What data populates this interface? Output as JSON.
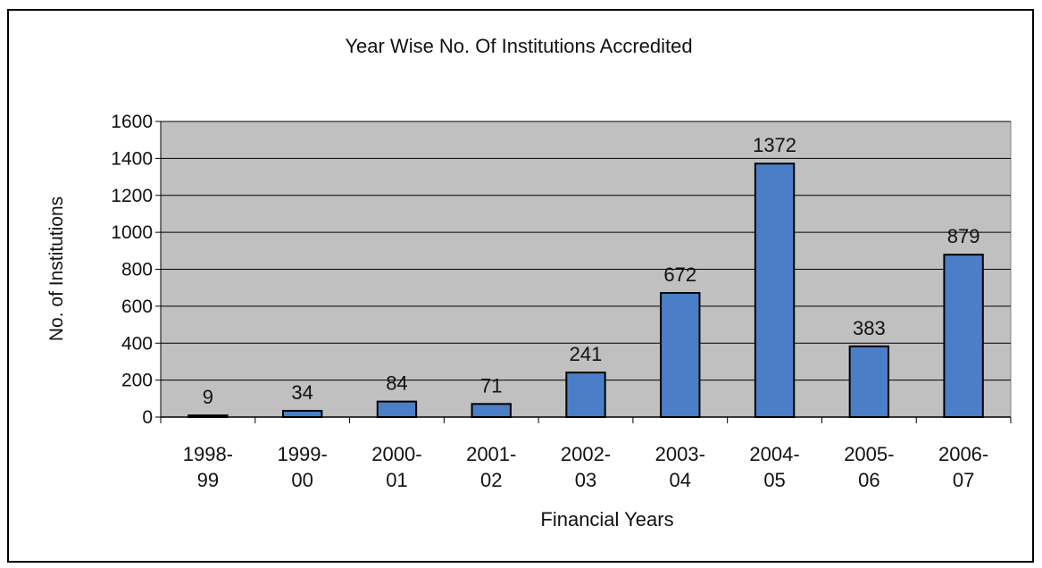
{
  "chart_data": {
    "type": "bar",
    "title": "Year Wise No. Of Institutions Accredited",
    "xlabel": "Financial Years",
    "ylabel": "No. of Institutions",
    "categories": [
      [
        "1998-",
        "99"
      ],
      [
        "1999-",
        "00"
      ],
      [
        "2000-",
        "01"
      ],
      [
        "2001-",
        "02"
      ],
      [
        "2002-",
        "03"
      ],
      [
        "2003-",
        "04"
      ],
      [
        "2004-",
        "05"
      ],
      [
        "2005-",
        "06"
      ],
      [
        "2006-",
        "07"
      ]
    ],
    "values": [
      9,
      34,
      84,
      71,
      241,
      672,
      1372,
      383,
      879
    ],
    "ylim": [
      0,
      1600
    ],
    "yticks": [
      0,
      200,
      400,
      600,
      800,
      1000,
      1200,
      1400,
      1600
    ],
    "grid": true,
    "data_labels": true,
    "colors": {
      "bar": "#4a7fc8",
      "bar_outline": "#000000",
      "plot_background": "#c0c0c0",
      "gridline": "#000000"
    }
  }
}
